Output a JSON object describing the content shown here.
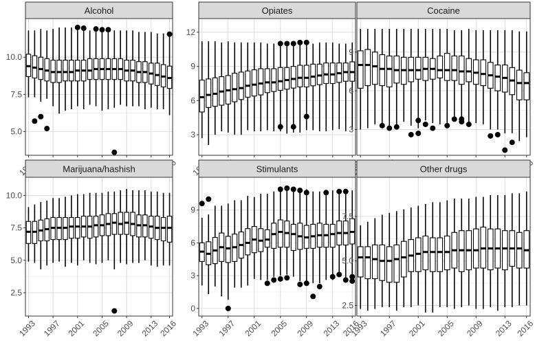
{
  "chart_data": {
    "type": "boxplot",
    "layout": "facet-grid-2x3",
    "years": [
      1993,
      1994,
      1995,
      1996,
      1997,
      1998,
      1999,
      2000,
      2001,
      2002,
      2003,
      2004,
      2005,
      2006,
      2007,
      2008,
      2009,
      2010,
      2011,
      2012,
      2013,
      2014,
      2015,
      2016
    ],
    "x_tick_labels": [
      "1993",
      "1997",
      "2001",
      "2005",
      "2009",
      "2013",
      "2016"
    ],
    "grid": true,
    "panels": [
      {
        "title": "Alcohol",
        "ylim": [
          3.4,
          12.6
        ],
        "yticks": [
          5.0,
          7.5,
          10.0
        ],
        "ytick_labels": [
          "5.0",
          "7.5",
          "10.0"
        ],
        "median": [
          9.4,
          9.3,
          9.2,
          9.1,
          9.0,
          9.0,
          9.0,
          9.0,
          9.1,
          9.1,
          9.1,
          9.2,
          9.2,
          9.2,
          9.2,
          9.2,
          9.1,
          9.1,
          9.0,
          9.0,
          8.9,
          8.8,
          8.7,
          8.6
        ],
        "q1": [
          8.7,
          8.6,
          8.5,
          8.4,
          8.3,
          8.3,
          8.4,
          8.4,
          8.4,
          8.4,
          8.5,
          8.5,
          8.5,
          8.5,
          8.5,
          8.5,
          8.4,
          8.4,
          8.3,
          8.3,
          8.2,
          8.1,
          8.0,
          7.9
        ],
        "q3": [
          10.2,
          10.1,
          10.0,
          9.9,
          9.8,
          9.8,
          9.8,
          9.8,
          9.8,
          9.8,
          9.9,
          9.9,
          9.9,
          9.9,
          9.9,
          9.9,
          9.8,
          9.8,
          9.7,
          9.7,
          9.6,
          9.6,
          9.5,
          9.4
        ],
        "low": [
          7.3,
          7.3,
          7.0,
          7.2,
          6.7,
          6.2,
          6.4,
          6.5,
          6.7,
          6.5,
          6.8,
          6.7,
          6.4,
          6.5,
          6.6,
          6.8,
          6.7,
          6.7,
          6.7,
          6.5,
          6.6,
          6.5,
          6.5,
          6.1
        ],
        "high": [
          11.8,
          11.8,
          11.9,
          11.8,
          11.9,
          12.0,
          12.0,
          12.0,
          11.9,
          11.8,
          11.8,
          11.8,
          11.9,
          11.8,
          11.8,
          11.8,
          11.8,
          11.8,
          11.7,
          11.7,
          11.7,
          11.6,
          11.6,
          11.6
        ],
        "outliers": [
          [
            1994,
            5.7
          ],
          [
            1995,
            6.0
          ],
          [
            1996,
            5.2
          ],
          [
            2001,
            12.0
          ],
          [
            2002,
            11.95
          ],
          [
            2004,
            11.9
          ],
          [
            2005,
            11.85
          ],
          [
            2006,
            11.85
          ],
          [
            2007,
            3.6
          ],
          [
            2016,
            11.55
          ]
        ]
      },
      {
        "title": "Opiates",
        "ylim": [
          1.2,
          13.2
        ],
        "yticks": [
          3,
          6,
          9,
          12
        ],
        "ytick_labels": [
          "3",
          "6",
          "9",
          "12"
        ],
        "median": [
          6.3,
          6.5,
          6.6,
          6.8,
          6.9,
          7.0,
          7.1,
          7.3,
          7.4,
          7.5,
          7.6,
          7.6,
          7.7,
          7.8,
          7.9,
          8.0,
          8.0,
          8.1,
          8.2,
          8.3,
          8.3,
          8.4,
          8.5,
          8.5
        ],
        "q1": [
          5.0,
          5.4,
          5.5,
          5.6,
          5.7,
          5.9,
          6.1,
          6.3,
          6.4,
          6.5,
          6.7,
          6.8,
          6.9,
          7.0,
          7.1,
          7.2,
          7.2,
          7.3,
          7.4,
          7.5,
          7.5,
          7.6,
          7.7,
          7.7
        ],
        "q3": [
          7.8,
          7.9,
          8.0,
          8.1,
          8.2,
          8.4,
          8.5,
          8.6,
          8.7,
          8.8,
          8.8,
          8.8,
          8.9,
          8.9,
          9.0,
          9.1,
          9.1,
          9.2,
          9.2,
          9.3,
          9.3,
          9.3,
          9.3,
          9.4
        ],
        "low": [
          2.7,
          2.1,
          3.0,
          3.3,
          3.2,
          3.0,
          3.0,
          3.4,
          3.3,
          3.3,
          3.4,
          3.3,
          3.3,
          3.1,
          3.2,
          3.2,
          3.4,
          3.4,
          3.3,
          3.3,
          3.4,
          3.5,
          3.3,
          3.5
        ],
        "high": [
          11.2,
          11.2,
          11.2,
          11.1,
          11.2,
          11.1,
          11.1,
          11.1,
          11.1,
          11.1,
          11.0,
          11.0,
          11.0,
          11.0,
          11.0,
          11.0,
          11.0,
          11.0,
          11.1,
          11.1,
          11.1,
          11.0,
          11.0,
          11.1
        ],
        "outliers": [
          [
            2005,
            11.0
          ],
          [
            2006,
            11.0
          ],
          [
            2007,
            11.0
          ],
          [
            2008,
            11.1
          ],
          [
            2009,
            11.1
          ],
          [
            2005,
            3.7
          ],
          [
            2007,
            3.7
          ],
          [
            2009,
            4.6
          ]
        ]
      },
      {
        "title": "Cocaine",
        "ylim": [
          1.0,
          11.6
        ],
        "yticks": [
          3,
          6,
          9
        ],
        "ytick_labels": [
          "3",
          "6",
          "9"
        ],
        "median": [
          8.0,
          8.0,
          7.9,
          7.7,
          7.7,
          7.6,
          7.6,
          7.6,
          7.6,
          7.7,
          7.7,
          7.6,
          7.6,
          7.6,
          7.5,
          7.5,
          7.4,
          7.3,
          7.2,
          7.1,
          7.0,
          6.8,
          6.6,
          6.6
        ],
        "q1": [
          6.2,
          6.4,
          6.5,
          6.4,
          6.3,
          6.6,
          6.5,
          6.7,
          6.9,
          6.8,
          6.9,
          7.0,
          6.8,
          6.8,
          6.5,
          6.7,
          6.5,
          6.4,
          6.2,
          6.0,
          5.9,
          5.7,
          5.3,
          5.3
        ],
        "q3": [
          9.1,
          9.2,
          9.0,
          8.8,
          8.7,
          8.7,
          8.6,
          8.6,
          8.6,
          8.6,
          8.5,
          8.7,
          8.9,
          8.7,
          8.7,
          8.5,
          8.4,
          8.4,
          8.2,
          8.0,
          8.0,
          7.8,
          7.6,
          7.4
        ],
        "low": [
          3.0,
          3.1,
          3.4,
          3.4,
          3.3,
          3.3,
          3.6,
          3.3,
          3.1,
          3.7,
          3.5,
          3.4,
          3.3,
          3.7,
          3.7,
          3.3,
          3.5,
          3.4,
          3.0,
          3.0,
          2.7,
          2.7,
          2.1,
          2.4
        ],
        "high": [
          10.8,
          10.8,
          10.8,
          10.8,
          10.8,
          10.8,
          10.8,
          10.8,
          10.8,
          10.8,
          10.8,
          10.8,
          10.8,
          10.7,
          10.7,
          10.8,
          10.7,
          10.7,
          10.7,
          10.7,
          10.7,
          10.7,
          10.6,
          10.6
        ],
        "outliers": [
          [
            1996,
            3.3
          ],
          [
            1997,
            3.1
          ],
          [
            1998,
            3.2
          ],
          [
            2000,
            2.6
          ],
          [
            2001,
            3.7
          ],
          [
            2001,
            2.7
          ],
          [
            2002,
            3.4
          ],
          [
            2003,
            3.1
          ],
          [
            2005,
            3.3
          ],
          [
            2006,
            3.8
          ],
          [
            2007,
            3.8
          ],
          [
            2007,
            3.6
          ],
          [
            2008,
            3.4
          ],
          [
            2011,
            2.5
          ],
          [
            2012,
            2.6
          ],
          [
            2013,
            1.4
          ],
          [
            2014,
            2.0
          ]
        ]
      },
      {
        "title": "Marijuana/hashish",
        "ylim": [
          0.7,
          11.4
        ],
        "yticks": [
          2.5,
          5.0,
          7.5,
          10.0
        ],
        "ytick_labels": [
          "2.5",
          "5.0",
          "7.5",
          "10.0"
        ],
        "median": [
          7.2,
          7.2,
          7.3,
          7.4,
          7.5,
          7.5,
          7.5,
          7.6,
          7.6,
          7.6,
          7.6,
          7.7,
          7.7,
          7.8,
          7.9,
          7.8,
          7.9,
          7.8,
          7.7,
          7.7,
          7.6,
          7.5,
          7.5,
          7.5
        ],
        "q1": [
          6.3,
          6.3,
          6.5,
          6.5,
          6.6,
          6.6,
          6.6,
          6.7,
          6.7,
          6.8,
          6.7,
          6.8,
          6.9,
          6.9,
          7.0,
          7.0,
          7.0,
          6.9,
          6.8,
          6.8,
          6.7,
          6.6,
          6.5,
          6.4
        ],
        "q3": [
          8.0,
          8.0,
          8.1,
          8.2,
          8.3,
          8.3,
          8.3,
          8.3,
          8.3,
          8.4,
          8.4,
          8.4,
          8.5,
          8.6,
          8.6,
          8.7,
          8.7,
          8.7,
          8.5,
          8.5,
          8.4,
          8.4,
          8.3,
          8.4
        ],
        "low": [
          4.9,
          4.8,
          4.3,
          4.6,
          4.8,
          4.9,
          4.5,
          4.8,
          4.6,
          5.0,
          4.8,
          4.7,
          4.8,
          5.0,
          4.3,
          4.8,
          4.7,
          4.8,
          4.8,
          5.0,
          4.6,
          4.5,
          4.6,
          4.6
        ],
        "high": [
          9.1,
          9.3,
          9.5,
          9.6,
          9.8,
          9.8,
          9.9,
          10.0,
          10.1,
          10.1,
          10.2,
          10.2,
          10.2,
          10.3,
          10.3,
          10.4,
          10.5,
          10.4,
          10.4,
          10.4,
          10.3,
          10.3,
          10.2,
          10.2
        ],
        "outliers": [
          [
            2007,
            1.1
          ]
        ]
      },
      {
        "title": "Stimulants",
        "ylim": [
          -0.7,
          12.0
        ],
        "yticks": [
          0,
          3,
          6,
          9
        ],
        "ytick_labels": [
          "0",
          "3",
          "6",
          "9"
        ],
        "median": [
          5.2,
          5.0,
          5.3,
          5.6,
          5.5,
          5.6,
          5.8,
          6.0,
          6.3,
          6.2,
          6.3,
          6.8,
          7.0,
          6.9,
          6.8,
          6.6,
          6.5,
          6.6,
          6.7,
          6.7,
          6.8,
          6.9,
          6.9,
          7.0
        ],
        "q1": [
          4.3,
          4.0,
          4.1,
          4.3,
          4.2,
          4.3,
          4.6,
          4.9,
          5.1,
          5.2,
          5.6,
          5.5,
          5.6,
          5.6,
          5.3,
          5.4,
          5.5,
          5.5,
          5.6,
          5.6,
          5.6,
          5.8,
          5.8,
          5.9
        ],
        "q3": [
          6.0,
          6.1,
          6.5,
          6.9,
          6.6,
          6.8,
          7.0,
          7.3,
          7.5,
          7.3,
          7.2,
          7.8,
          8.1,
          8.0,
          7.7,
          7.8,
          7.6,
          7.7,
          7.8,
          7.7,
          7.7,
          8.0,
          8.0,
          8.2
        ],
        "low": [
          2.1,
          1.3,
          2.0,
          1.1,
          0.8,
          1.9,
          1.9,
          2.1,
          2.7,
          2.6,
          2.6,
          2.9,
          3.0,
          3.1,
          2.9,
          2.5,
          2.5,
          2.3,
          2.3,
          2.6,
          2.6,
          3.1,
          2.8,
          3.0
        ],
        "high": [
          8.3,
          8.6,
          9.4,
          9.4,
          9.6,
          9.9,
          9.9,
          10.3,
          10.2,
          10.5,
          10.5,
          10.7,
          10.8,
          10.9,
          10.9,
          10.8,
          10.9,
          10.7,
          10.7,
          10.8,
          10.8,
          10.8,
          10.8,
          10.8
        ],
        "outliers": [
          [
            1993,
            9.6
          ],
          [
            1994,
            10.0
          ],
          [
            1997,
            0.0
          ],
          [
            2003,
            2.3
          ],
          [
            2004,
            2.6
          ],
          [
            2005,
            2.7
          ],
          [
            2005,
            10.9
          ],
          [
            2006,
            11.0
          ],
          [
            2006,
            2.8
          ],
          [
            2007,
            10.9
          ],
          [
            2008,
            10.8
          ],
          [
            2008,
            2.2
          ],
          [
            2009,
            10.6
          ],
          [
            2009,
            2.3
          ],
          [
            2010,
            1.1
          ],
          [
            2011,
            2.0
          ],
          [
            2012,
            10.6
          ],
          [
            2013,
            2.9
          ],
          [
            2014,
            10.7
          ],
          [
            2014,
            3.1
          ],
          [
            2015,
            10.7
          ],
          [
            2015,
            2.6
          ],
          [
            2016,
            2.5
          ],
          [
            2016,
            2.9
          ]
        ]
      },
      {
        "title": "Other drugs",
        "ylim": [
          1.9,
          9.7
        ],
        "yticks": [
          2.5,
          5.0,
          7.5
        ],
        "ytick_labels": [
          "2.5",
          "5.0",
          "7.5"
        ],
        "median": [
          5.2,
          5.2,
          5.1,
          5.0,
          5.0,
          5.1,
          5.2,
          5.3,
          5.4,
          5.5,
          5.5,
          5.5,
          5.5,
          5.6,
          5.6,
          5.6,
          5.6,
          5.7,
          5.7,
          5.7,
          5.7,
          5.7,
          5.7,
          5.6
        ],
        "q1": [
          4.1,
          4.0,
          4.0,
          3.9,
          3.8,
          3.8,
          4.1,
          4.4,
          4.4,
          4.5,
          4.4,
          4.4,
          4.5,
          4.6,
          4.4,
          4.5,
          4.6,
          4.6,
          4.5,
          4.6,
          4.5,
          4.7,
          4.6,
          4.6
        ],
        "q3": [
          5.8,
          5.8,
          5.9,
          5.9,
          5.8,
          5.9,
          6.1,
          6.2,
          6.3,
          6.4,
          6.3,
          6.3,
          6.4,
          6.6,
          6.7,
          6.7,
          6.8,
          6.9,
          6.8,
          6.8,
          6.7,
          6.7,
          6.6,
          6.7
        ],
        "low": [
          2.3,
          2.2,
          2.3,
          2.4,
          2.4,
          2.2,
          2.4,
          2.4,
          2.5,
          2.1,
          2.1,
          2.4,
          2.4,
          2.3,
          2.4,
          2.5,
          2.3,
          2.3,
          2.4,
          2.2,
          2.4,
          2.4,
          2.5,
          2.5
        ],
        "high": [
          7.0,
          7.2,
          7.4,
          7.6,
          7.7,
          7.8,
          7.9,
          8.0,
          8.1,
          8.2,
          8.3,
          8.3,
          8.4,
          8.5,
          8.5,
          8.5,
          8.6,
          8.6,
          8.7,
          8.7,
          8.7,
          8.8,
          8.8,
          8.9
        ],
        "outliers": []
      }
    ]
  }
}
